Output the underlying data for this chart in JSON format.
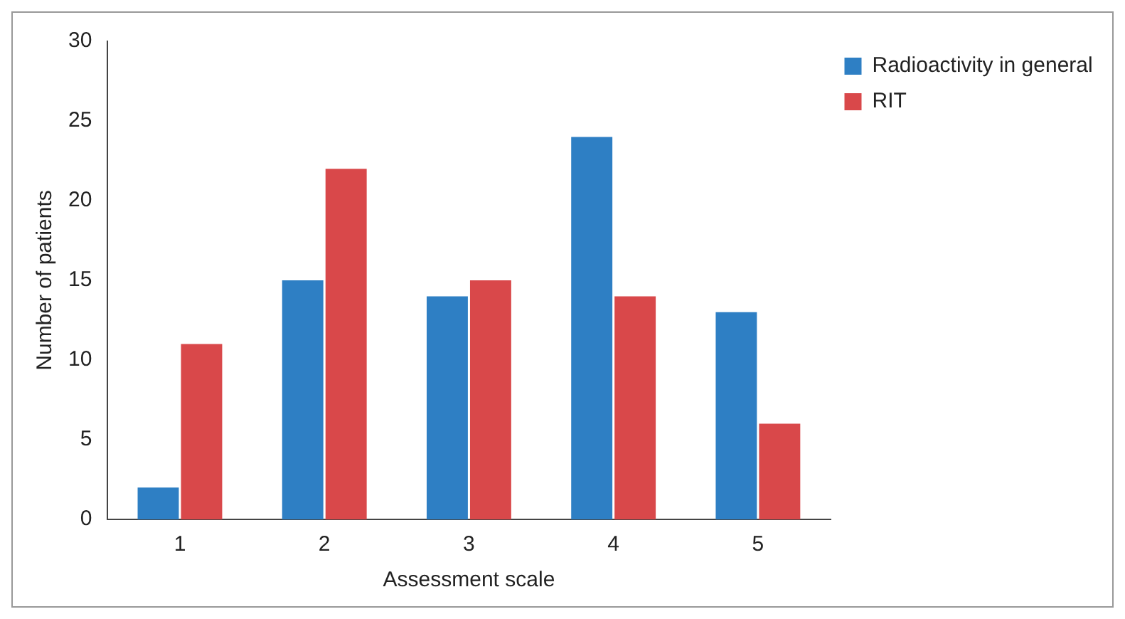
{
  "chart_data": {
    "type": "bar",
    "xlabel": "Assessment scale",
    "ylabel": "Number of patients",
    "categories": [
      "1",
      "2",
      "3",
      "4",
      "5"
    ],
    "series": [
      {
        "name": "Radioactivity in general",
        "color": "#2e7fc4",
        "values": [
          2,
          15,
          14,
          24,
          13
        ]
      },
      {
        "name": "RIT",
        "color": "#d9484a",
        "values": [
          11,
          22,
          15,
          14,
          6
        ]
      }
    ],
    "ylim": [
      0,
      30
    ],
    "yticks": [
      0,
      5,
      10,
      15,
      20,
      25,
      30
    ],
    "grid": false,
    "legend": "top right"
  }
}
